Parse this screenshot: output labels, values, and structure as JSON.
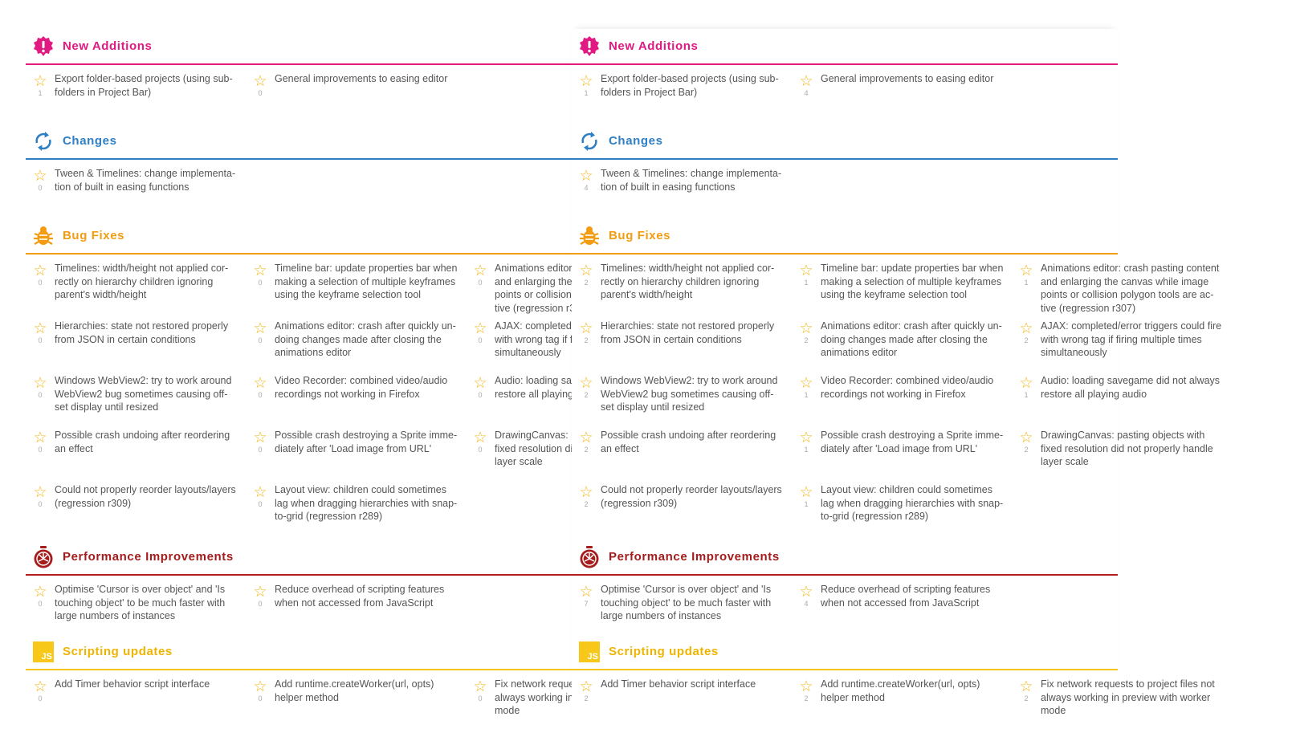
{
  "sections": [
    {
      "key": "new",
      "title": "New Additions",
      "icon": "alert-badge-icon",
      "color": "#e01a82",
      "items": [
        {
          "text": "Export folder-based projects (using sub-folders in Project Bar)",
          "votes_left": "1",
          "votes_right": "1"
        },
        {
          "text": "General improvements to easing editor",
          "votes_left": "0",
          "votes_right": "4"
        }
      ]
    },
    {
      "key": "changes",
      "title": "Changes",
      "icon": "refresh-icon",
      "color": "#2e7fc4",
      "items": [
        {
          "text": "Tween & Timelines: change implementation of built in easing functions",
          "votes_left": "0",
          "votes_right": "4"
        }
      ]
    },
    {
      "key": "bugs",
      "title": "Bug Fixes",
      "icon": "bug-icon",
      "color": "#f39c12",
      "items": [
        {
          "text": "Timelines: width/height not applied correctly on hierarchy children ignoring parent's width/height",
          "votes_left": "0",
          "votes_right": "2"
        },
        {
          "text": "Timeline bar: update properties bar when making a selection of multiple keyframes using the keyframe selection tool",
          "votes_left": "0",
          "votes_right": "1"
        },
        {
          "text": "Animations editor: crash pasting content and enlarging the canvas while image points or collision polygon tools are active (regression r307)",
          "votes_left": "0",
          "votes_right": "1"
        },
        {
          "text": "Hierarchies: state not restored properly from JSON in certain conditions",
          "votes_left": "0",
          "votes_right": "2"
        },
        {
          "text": "Animations editor: crash after quickly undoing changes made after closing the animations editor",
          "votes_left": "0",
          "votes_right": "2"
        },
        {
          "text": "AJAX: completed/error triggers could fire with wrong tag if firing multiple times simultaneously",
          "votes_left": "0",
          "votes_right": "2"
        },
        {
          "text": "Windows WebView2: try to work around WebView2 bug sometimes causing offset display until resized",
          "votes_left": "0",
          "votes_right": "2"
        },
        {
          "text": "Video Recorder: combined video/audio recordings not working in Firefox",
          "votes_left": "0",
          "votes_right": "1"
        },
        {
          "text": "Audio: loading savegame did not always restore all playing audio",
          "votes_left": "0",
          "votes_right": "1"
        },
        {
          "text": "Possible crash undoing after reordering an effect",
          "votes_left": "0",
          "votes_right": "2"
        },
        {
          "text": "Possible crash destroying a Sprite immediately after 'Load image from URL'",
          "votes_left": "0",
          "votes_right": "1"
        },
        {
          "text": "DrawingCanvas: pasting objects with fixed resolution did not properly handle layer scale",
          "votes_left": "0",
          "votes_right": "2"
        },
        {
          "text": "Could not properly reorder layouts/layers (regression r309)",
          "votes_left": "0",
          "votes_right": "2"
        },
        {
          "text": "Layout view: children could sometimes lag when dragging hierarchies with snap-to-grid (regression r289)",
          "votes_left": "0",
          "votes_right": "1"
        }
      ]
    },
    {
      "key": "perf",
      "title": "Performance Improvements",
      "icon": "stopwatch-icon",
      "color": "#a51c1c",
      "items": [
        {
          "text": "Optimise 'Cursor is over object' and 'Is touching object' to be much faster with large numbers of instances",
          "votes_left": "0",
          "votes_right": "7"
        },
        {
          "text": "Reduce overhead of scripting features when not accessed from JavaScript",
          "votes_left": "0",
          "votes_right": "4"
        }
      ]
    },
    {
      "key": "js",
      "title": "Scripting updates",
      "icon": "js-icon",
      "color": "#f0b400",
      "icon_text": "JS",
      "items": [
        {
          "text": "Add Timer behavior script interface",
          "votes_left": "0",
          "votes_right": "2"
        },
        {
          "text": "Add runtime.createWorker(url, opts) helper method",
          "votes_left": "0",
          "votes_right": "2"
        },
        {
          "text": "Fix network requests to project files not always working in preview with worker mode",
          "votes_left": "0",
          "votes_right": "2"
        }
      ]
    }
  ],
  "display_text": {
    "new_0": "Export folder-based projects (using sub-\nfolders in Project Bar)",
    "changes_0": "Tween & Timelines: change implementa-\ntion of built in easing functions",
    "bugs_0": "Timelines: width/height not applied cor-\nrectly on hierarchy children ignoring\nparent's width/height",
    "bugs_2": "Animations editor: crash pasting content\nand enlarging the canvas while image\npoints or collision polygon tools are ac-\ntive (regression r307)",
    "bugs_4": "Animations editor: crash after quickly un-\ndoing changes made after closing the\nanimations editor",
    "bugs_6": "Windows WebView2: try to work around\nWebView2 bug sometimes causing off-\nset display until resized",
    "bugs_10": "Possible crash destroying a Sprite imme-\ndiately after 'Load image from URL'",
    "bugs_13": "Layout view: children could sometimes\nlag when dragging hierarchies with snap-\nto-grid (regression r289)"
  }
}
